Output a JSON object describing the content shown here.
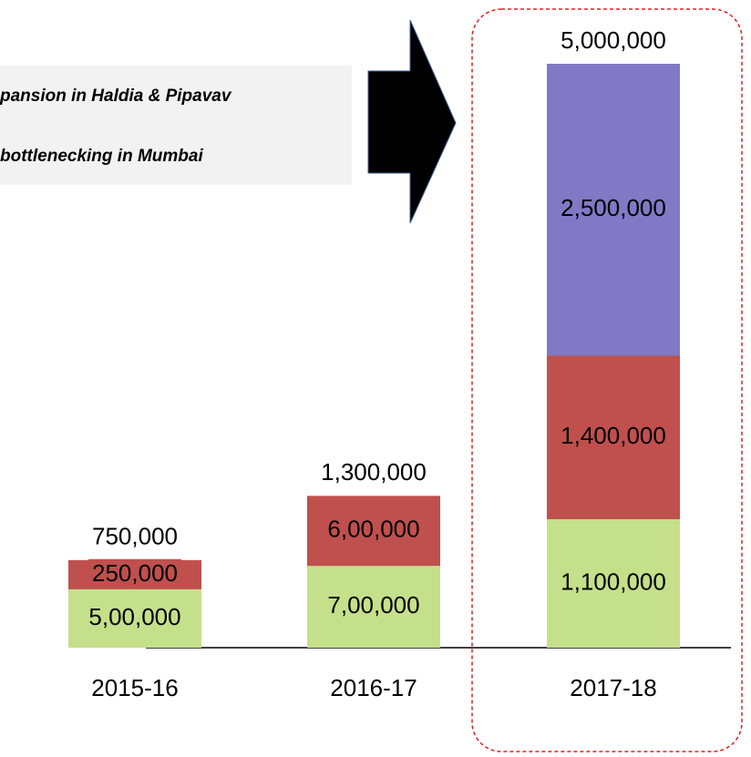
{
  "chart_data": {
    "type": "bar",
    "stacked": true,
    "annotations": [
      "pansion in Haldia & Pipavav",
      "bottlenecking in Mumbai"
    ],
    "categories": [
      "2015-16",
      "2016-17",
      "2017-18"
    ],
    "series": [
      {
        "color": "#c5e08a",
        "values": [
          500000,
          700000,
          1100000
        ],
        "value_labels": [
          "5,00,000",
          "7,00,000",
          "1,100,000"
        ]
      },
      {
        "color": "#c0504d",
        "values": [
          250000,
          600000,
          1400000
        ],
        "value_labels": [
          "250,000",
          "6,00,000",
          "1,400,000"
        ]
      },
      {
        "color": "#8179c6",
        "values": [
          null,
          null,
          2500000
        ],
        "value_labels": [
          null,
          null,
          "2,500,000"
        ]
      }
    ],
    "totals": [
      750000,
      1300000,
      5000000
    ],
    "total_labels": [
      "750,000",
      "1,300,000",
      "5,000,000"
    ],
    "ylim": [
      0,
      5000000
    ]
  }
}
